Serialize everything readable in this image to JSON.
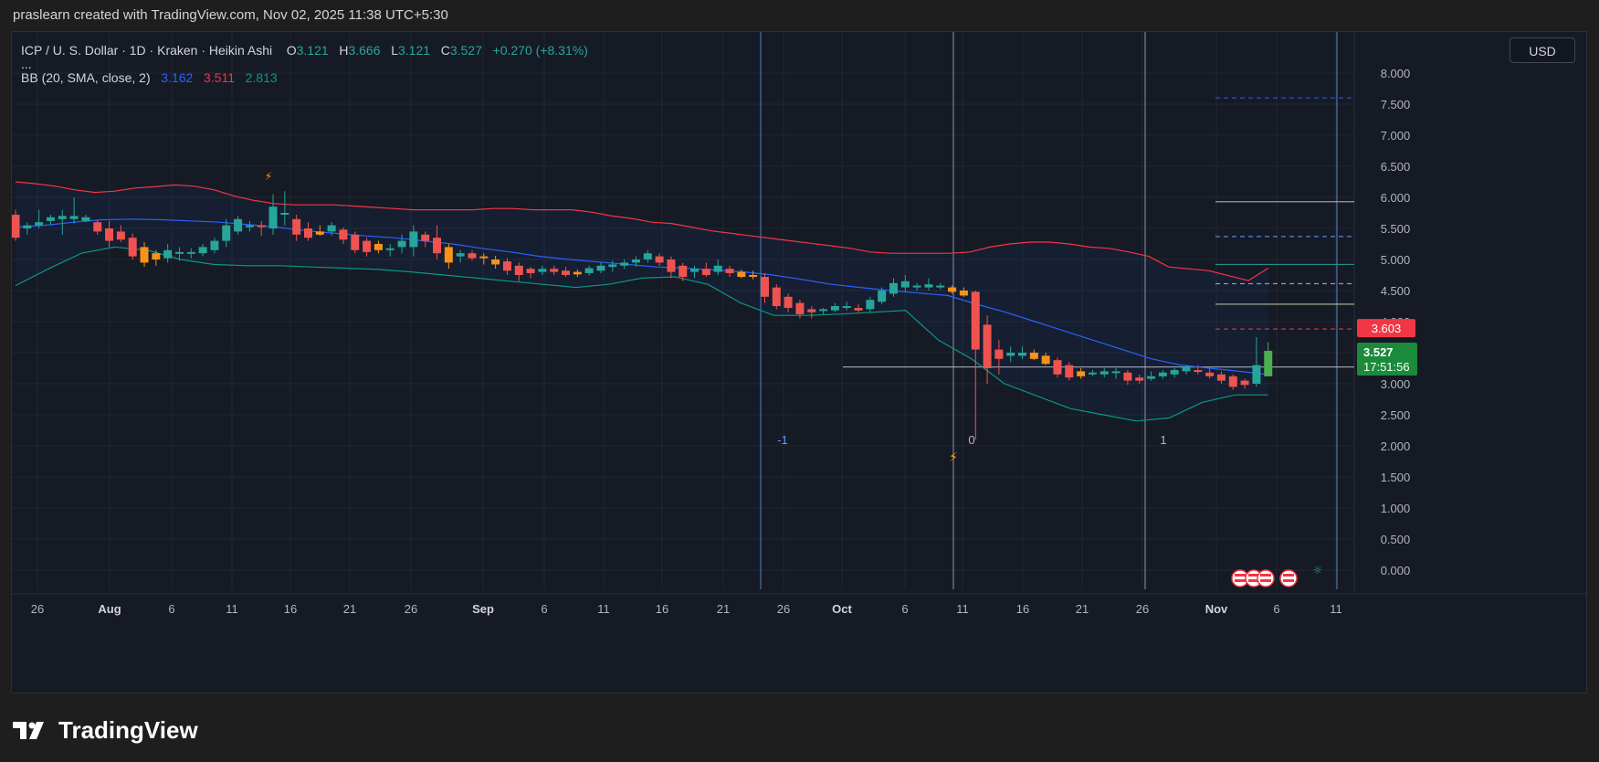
{
  "header": {
    "attribution": "praslearn created with TradingView.com, Nov 02, 2025 11:38 UTC+5:30"
  },
  "legend": {
    "symbol": "ICP / U. S. Dollar · 1D · Kraken · Heikin Ashi",
    "open_label": "O",
    "open": "3.121",
    "high_label": "H",
    "high": "3.666",
    "low_label": "L",
    "low": "3.121",
    "close_label": "C",
    "close": "3.527",
    "change": "+0.270 (+8.31%)",
    "more": "...",
    "bb_label": "BB (20, SMA, close, 2)",
    "bb_mid": "3.162",
    "bb_upper": "3.511",
    "bb_lower": "2.813"
  },
  "currency": "USD",
  "brand": "TradingView",
  "colors": {
    "bg": "#161a25",
    "up": "#26a69a",
    "down": "#ef5350",
    "orange": "#f7931a",
    "bb_mid": "#2962ff",
    "bb_upper": "#f23645",
    "bb_lower": "#089981",
    "grid": "#222631"
  },
  "chart_data": {
    "type": "candlestick",
    "title": "ICP / U. S. Dollar · 1D · Kraken · Heikin Ashi",
    "y_axis": {
      "ticks": [
        "8.000",
        "7.500",
        "7.000",
        "6.500",
        "6.000",
        "5.500",
        "5.000",
        "4.500",
        "4.000",
        "3.500",
        "3.000",
        "2.500",
        "2.000",
        "1.500",
        "1.000",
        "0.500",
        "0.000"
      ],
      "range": [
        0,
        8
      ]
    },
    "x_axis": {
      "ticks": [
        "26",
        "Aug",
        "6",
        "11",
        "16",
        "21",
        "26",
        "Sep",
        "6",
        "11",
        "16",
        "21",
        "26",
        "Oct",
        "6",
        "11",
        "16",
        "21",
        "26",
        "Nov",
        "6",
        "11"
      ],
      "bold_ticks": [
        "Aug",
        "Sep",
        "Oct",
        "Nov"
      ]
    },
    "price_labels": {
      "upper_price": "3.603",
      "last_price": "3.527",
      "countdown": "17:51:56"
    },
    "fib_labels": [
      "-1",
      "0",
      "1"
    ],
    "horizontal_levels": [
      {
        "value": 7.6,
        "style": "dashed",
        "color": "#2962ff"
      },
      {
        "value": 5.93,
        "style": "solid",
        "color": "#b2b5be"
      },
      {
        "value": 5.37,
        "style": "dashed",
        "color": "#5b9cf6"
      },
      {
        "value": 4.92,
        "style": "solid",
        "color": "#26a69a"
      },
      {
        "value": 4.61,
        "style": "dashed",
        "color": "#b2b5be"
      },
      {
        "value": 4.28,
        "style": "solid",
        "color": "#c5e1a5"
      },
      {
        "value": 3.88,
        "style": "dashed",
        "color": "#f23645"
      },
      {
        "value": 3.27,
        "style": "solid",
        "color": "#b2b5be"
      }
    ],
    "candles": [
      {
        "o": 5.72,
        "h": 5.8,
        "l": 5.3,
        "c": 5.35,
        "k": "down"
      },
      {
        "o": 5.5,
        "h": 5.6,
        "l": 5.4,
        "c": 5.55,
        "k": "up"
      },
      {
        "o": 5.55,
        "h": 5.8,
        "l": 5.5,
        "c": 5.6,
        "k": "up"
      },
      {
        "o": 5.62,
        "h": 5.72,
        "l": 5.56,
        "c": 5.68,
        "k": "up"
      },
      {
        "o": 5.7,
        "h": 5.8,
        "l": 5.4,
        "c": 5.65,
        "k": "up"
      },
      {
        "o": 5.65,
        "h": 6.0,
        "l": 5.58,
        "c": 5.7,
        "k": "up"
      },
      {
        "o": 5.68,
        "h": 5.72,
        "l": 5.6,
        "c": 5.62,
        "k": "up"
      },
      {
        "o": 5.6,
        "h": 5.64,
        "l": 5.4,
        "c": 5.45,
        "k": "down"
      },
      {
        "o": 5.5,
        "h": 5.62,
        "l": 5.2,
        "c": 5.3,
        "k": "down"
      },
      {
        "o": 5.45,
        "h": 5.55,
        "l": 5.28,
        "c": 5.32,
        "k": "down"
      },
      {
        "o": 5.35,
        "h": 5.42,
        "l": 5.0,
        "c": 5.05,
        "k": "down"
      },
      {
        "o": 5.2,
        "h": 5.28,
        "l": 4.88,
        "c": 4.95,
        "k": "orange"
      },
      {
        "o": 5.1,
        "h": 5.15,
        "l": 4.9,
        "c": 5.0,
        "k": "orange"
      },
      {
        "o": 5.02,
        "h": 5.25,
        "l": 4.95,
        "c": 5.15,
        "k": "up"
      },
      {
        "o": 5.1,
        "h": 5.2,
        "l": 4.98,
        "c": 5.12,
        "k": "up"
      },
      {
        "o": 5.1,
        "h": 5.18,
        "l": 5.02,
        "c": 5.12,
        "k": "up"
      },
      {
        "o": 5.1,
        "h": 5.25,
        "l": 5.05,
        "c": 5.2,
        "k": "up"
      },
      {
        "o": 5.15,
        "h": 5.35,
        "l": 5.1,
        "c": 5.3,
        "k": "up"
      },
      {
        "o": 5.3,
        "h": 5.65,
        "l": 5.2,
        "c": 5.55,
        "k": "up"
      },
      {
        "o": 5.45,
        "h": 5.7,
        "l": 5.4,
        "c": 5.65,
        "k": "up"
      },
      {
        "o": 5.52,
        "h": 5.62,
        "l": 5.45,
        "c": 5.55,
        "k": "up"
      },
      {
        "o": 5.55,
        "h": 5.62,
        "l": 5.38,
        "c": 5.52,
        "k": "down"
      },
      {
        "o": 5.5,
        "h": 6.05,
        "l": 5.4,
        "c": 5.85,
        "k": "up"
      },
      {
        "o": 5.72,
        "h": 6.1,
        "l": 5.55,
        "c": 5.75,
        "k": "up"
      },
      {
        "o": 5.65,
        "h": 5.72,
        "l": 5.3,
        "c": 5.4,
        "k": "down"
      },
      {
        "o": 5.5,
        "h": 5.6,
        "l": 5.3,
        "c": 5.35,
        "k": "down"
      },
      {
        "o": 5.45,
        "h": 5.55,
        "l": 5.38,
        "c": 5.4,
        "k": "orange"
      },
      {
        "o": 5.45,
        "h": 5.6,
        "l": 5.38,
        "c": 5.55,
        "k": "up"
      },
      {
        "o": 5.48,
        "h": 5.52,
        "l": 5.25,
        "c": 5.32,
        "k": "down"
      },
      {
        "o": 5.4,
        "h": 5.45,
        "l": 5.1,
        "c": 5.15,
        "k": "down"
      },
      {
        "o": 5.3,
        "h": 5.35,
        "l": 5.05,
        "c": 5.12,
        "k": "down"
      },
      {
        "o": 5.25,
        "h": 5.3,
        "l": 5.1,
        "c": 5.15,
        "k": "orange"
      },
      {
        "o": 5.15,
        "h": 5.25,
        "l": 5.05,
        "c": 5.18,
        "k": "up"
      },
      {
        "o": 5.2,
        "h": 5.4,
        "l": 5.1,
        "c": 5.3,
        "k": "up"
      },
      {
        "o": 5.2,
        "h": 5.55,
        "l": 5.05,
        "c": 5.45,
        "k": "up"
      },
      {
        "o": 5.4,
        "h": 5.45,
        "l": 5.2,
        "c": 5.3,
        "k": "down"
      },
      {
        "o": 5.35,
        "h": 5.55,
        "l": 5.0,
        "c": 5.1,
        "k": "down"
      },
      {
        "o": 5.2,
        "h": 5.25,
        "l": 4.85,
        "c": 4.95,
        "k": "orange"
      },
      {
        "o": 5.1,
        "h": 5.15,
        "l": 4.95,
        "c": 5.05,
        "k": "up"
      },
      {
        "o": 5.1,
        "h": 5.15,
        "l": 4.98,
        "c": 5.02,
        "k": "down"
      },
      {
        "o": 5.05,
        "h": 5.1,
        "l": 4.92,
        "c": 5.02,
        "k": "orange"
      },
      {
        "o": 5.0,
        "h": 5.06,
        "l": 4.85,
        "c": 4.92,
        "k": "orange"
      },
      {
        "o": 4.97,
        "h": 5.02,
        "l": 4.75,
        "c": 4.82,
        "k": "down"
      },
      {
        "o": 4.9,
        "h": 4.95,
        "l": 4.65,
        "c": 4.75,
        "k": "down"
      },
      {
        "o": 4.85,
        "h": 4.88,
        "l": 4.7,
        "c": 4.78,
        "k": "down"
      },
      {
        "o": 4.8,
        "h": 4.9,
        "l": 4.75,
        "c": 4.85,
        "k": "up"
      },
      {
        "o": 4.85,
        "h": 4.9,
        "l": 4.75,
        "c": 4.8,
        "k": "down"
      },
      {
        "o": 4.82,
        "h": 4.88,
        "l": 4.72,
        "c": 4.75,
        "k": "down"
      },
      {
        "o": 4.8,
        "h": 4.84,
        "l": 4.72,
        "c": 4.76,
        "k": "orange"
      },
      {
        "o": 4.78,
        "h": 4.9,
        "l": 4.74,
        "c": 4.86,
        "k": "up"
      },
      {
        "o": 4.82,
        "h": 4.95,
        "l": 4.78,
        "c": 4.9,
        "k": "up"
      },
      {
        "o": 4.88,
        "h": 4.98,
        "l": 4.8,
        "c": 4.92,
        "k": "up"
      },
      {
        "o": 4.9,
        "h": 5.0,
        "l": 4.85,
        "c": 4.95,
        "k": "up"
      },
      {
        "o": 4.95,
        "h": 5.05,
        "l": 4.88,
        "c": 5.0,
        "k": "up"
      },
      {
        "o": 5.0,
        "h": 5.15,
        "l": 4.95,
        "c": 5.1,
        "k": "up"
      },
      {
        "o": 5.05,
        "h": 5.1,
        "l": 4.9,
        "c": 4.95,
        "k": "down"
      },
      {
        "o": 5.0,
        "h": 5.05,
        "l": 4.7,
        "c": 4.8,
        "k": "down"
      },
      {
        "o": 4.9,
        "h": 4.95,
        "l": 4.65,
        "c": 4.72,
        "k": "down"
      },
      {
        "o": 4.8,
        "h": 4.9,
        "l": 4.7,
        "c": 4.85,
        "k": "up"
      },
      {
        "o": 4.85,
        "h": 4.95,
        "l": 4.72,
        "c": 4.75,
        "k": "down"
      },
      {
        "o": 4.8,
        "h": 5.0,
        "l": 4.75,
        "c": 4.9,
        "k": "up"
      },
      {
        "o": 4.85,
        "h": 4.9,
        "l": 4.72,
        "c": 4.78,
        "k": "down"
      },
      {
        "o": 4.8,
        "h": 4.84,
        "l": 4.7,
        "c": 4.72,
        "k": "orange"
      },
      {
        "o": 4.75,
        "h": 4.82,
        "l": 4.68,
        "c": 4.72,
        "k": "orange"
      },
      {
        "o": 4.72,
        "h": 4.78,
        "l": 4.3,
        "c": 4.4,
        "k": "down"
      },
      {
        "o": 4.55,
        "h": 4.6,
        "l": 4.2,
        "c": 4.25,
        "k": "down"
      },
      {
        "o": 4.4,
        "h": 4.45,
        "l": 4.15,
        "c": 4.22,
        "k": "down"
      },
      {
        "o": 4.3,
        "h": 4.35,
        "l": 4.05,
        "c": 4.12,
        "k": "down"
      },
      {
        "o": 4.2,
        "h": 4.25,
        "l": 4.05,
        "c": 4.15,
        "k": "down"
      },
      {
        "o": 4.18,
        "h": 4.22,
        "l": 4.12,
        "c": 4.2,
        "k": "up"
      },
      {
        "o": 4.18,
        "h": 4.3,
        "l": 4.15,
        "c": 4.25,
        "k": "up"
      },
      {
        "o": 4.22,
        "h": 4.32,
        "l": 4.18,
        "c": 4.25,
        "k": "up"
      },
      {
        "o": 4.22,
        "h": 4.28,
        "l": 4.15,
        "c": 4.18,
        "k": "down"
      },
      {
        "o": 4.2,
        "h": 4.4,
        "l": 4.15,
        "c": 4.35,
        "k": "up"
      },
      {
        "o": 4.32,
        "h": 4.55,
        "l": 4.28,
        "c": 4.5,
        "k": "up"
      },
      {
        "o": 4.45,
        "h": 4.7,
        "l": 4.4,
        "c": 4.62,
        "k": "up"
      },
      {
        "o": 4.55,
        "h": 4.75,
        "l": 4.48,
        "c": 4.65,
        "k": "up"
      },
      {
        "o": 4.55,
        "h": 4.62,
        "l": 4.5,
        "c": 4.58,
        "k": "up"
      },
      {
        "o": 4.55,
        "h": 4.7,
        "l": 4.5,
        "c": 4.6,
        "k": "up"
      },
      {
        "o": 4.58,
        "h": 4.62,
        "l": 4.52,
        "c": 4.55,
        "k": "up"
      },
      {
        "o": 4.55,
        "h": 4.58,
        "l": 4.45,
        "c": 4.48,
        "k": "orange"
      },
      {
        "o": 4.5,
        "h": 4.55,
        "l": 4.4,
        "c": 4.42,
        "k": "orange"
      },
      {
        "o": 4.48,
        "h": 4.5,
        "l": 2.1,
        "c": 3.55,
        "k": "down"
      },
      {
        "o": 3.95,
        "h": 4.1,
        "l": 3.0,
        "c": 3.25,
        "k": "down"
      },
      {
        "o": 3.55,
        "h": 3.7,
        "l": 3.15,
        "c": 3.4,
        "k": "down"
      },
      {
        "o": 3.45,
        "h": 3.6,
        "l": 3.35,
        "c": 3.5,
        "k": "up"
      },
      {
        "o": 3.5,
        "h": 3.6,
        "l": 3.4,
        "c": 3.45,
        "k": "up"
      },
      {
        "o": 3.5,
        "h": 3.55,
        "l": 3.38,
        "c": 3.4,
        "k": "orange"
      },
      {
        "o": 3.45,
        "h": 3.5,
        "l": 3.3,
        "c": 3.32,
        "k": "orange"
      },
      {
        "o": 3.38,
        "h": 3.42,
        "l": 3.1,
        "c": 3.15,
        "k": "down"
      },
      {
        "o": 3.3,
        "h": 3.35,
        "l": 3.05,
        "c": 3.1,
        "k": "down"
      },
      {
        "o": 3.2,
        "h": 3.25,
        "l": 3.08,
        "c": 3.12,
        "k": "orange"
      },
      {
        "o": 3.18,
        "h": 3.22,
        "l": 3.12,
        "c": 3.15,
        "k": "up"
      },
      {
        "o": 3.15,
        "h": 3.25,
        "l": 3.1,
        "c": 3.2,
        "k": "up"
      },
      {
        "o": 3.18,
        "h": 3.25,
        "l": 3.08,
        "c": 3.2,
        "k": "up"
      },
      {
        "o": 3.18,
        "h": 3.22,
        "l": 2.98,
        "c": 3.05,
        "k": "down"
      },
      {
        "o": 3.1,
        "h": 3.15,
        "l": 3.0,
        "c": 3.05,
        "k": "down"
      },
      {
        "o": 3.08,
        "h": 3.2,
        "l": 3.05,
        "c": 3.12,
        "k": "up"
      },
      {
        "o": 3.12,
        "h": 3.22,
        "l": 3.08,
        "c": 3.18,
        "k": "up"
      },
      {
        "o": 3.15,
        "h": 3.25,
        "l": 3.1,
        "c": 3.22,
        "k": "up"
      },
      {
        "o": 3.2,
        "h": 3.3,
        "l": 3.15,
        "c": 3.28,
        "k": "up"
      },
      {
        "o": 3.22,
        "h": 3.3,
        "l": 3.15,
        "c": 3.2,
        "k": "down"
      },
      {
        "o": 3.18,
        "h": 3.25,
        "l": 3.08,
        "c": 3.12,
        "k": "down"
      },
      {
        "o": 3.15,
        "h": 3.2,
        "l": 3.0,
        "c": 3.05,
        "k": "down"
      },
      {
        "o": 3.12,
        "h": 3.15,
        "l": 2.9,
        "c": 2.95,
        "k": "down"
      },
      {
        "o": 3.05,
        "h": 3.08,
        "l": 2.92,
        "c": 2.98,
        "k": "down"
      },
      {
        "o": 3.0,
        "h": 3.75,
        "l": 2.95,
        "c": 3.3,
        "k": "up"
      },
      {
        "o": 3.12,
        "h": 3.67,
        "l": 3.12,
        "c": 3.53,
        "k": "up_bright"
      }
    ],
    "bb_upper": [
      6.25,
      6.22,
      6.18,
      6.12,
      6.08,
      6.1,
      6.15,
      6.17,
      6.2,
      6.18,
      6.12,
      6.02,
      5.95,
      5.9,
      5.88,
      5.88,
      5.88,
      5.86,
      5.84,
      5.82,
      5.8,
      5.8,
      5.8,
      5.8,
      5.82,
      5.82,
      5.8,
      5.8,
      5.8,
      5.76,
      5.7,
      5.66,
      5.6,
      5.58,
      5.52,
      5.46,
      5.42,
      5.38,
      5.34,
      5.3,
      5.26,
      5.22,
      5.18,
      5.12,
      5.1,
      5.1,
      5.1,
      5.1,
      5.12,
      5.2,
      5.25,
      5.28,
      5.28,
      5.25,
      5.2,
      5.18,
      5.12,
      5.05,
      4.88,
      4.85,
      4.82,
      4.74,
      4.66,
      4.86
    ],
    "bb_mid": [
      5.52,
      5.55,
      5.6,
      5.64,
      5.65,
      5.64,
      5.62,
      5.6,
      5.56,
      5.52,
      5.46,
      5.42,
      5.38,
      5.35,
      5.3,
      5.25,
      5.18,
      5.12,
      5.05,
      5.0,
      4.96,
      4.92,
      4.88,
      4.86,
      4.83,
      4.8,
      4.75,
      4.68,
      4.6,
      4.55,
      4.5,
      4.46,
      4.42,
      4.28,
      4.15,
      4.0,
      3.85,
      3.7,
      3.55,
      3.4,
      3.3,
      3.25,
      3.2,
      3.15
    ],
    "bb_lower": [
      4.58,
      4.85,
      5.1,
      5.2,
      5.15,
      5.0,
      4.92,
      4.9,
      4.9,
      4.88,
      4.86,
      4.84,
      4.8,
      4.75,
      4.7,
      4.65,
      4.6,
      4.55,
      4.6,
      4.7,
      4.72,
      4.6,
      4.3,
      4.1,
      4.1,
      4.12,
      4.15,
      4.18,
      3.7,
      3.4,
      3.0,
      2.8,
      2.6,
      2.5,
      2.4,
      2.45,
      2.7,
      2.82,
      2.82
    ]
  }
}
